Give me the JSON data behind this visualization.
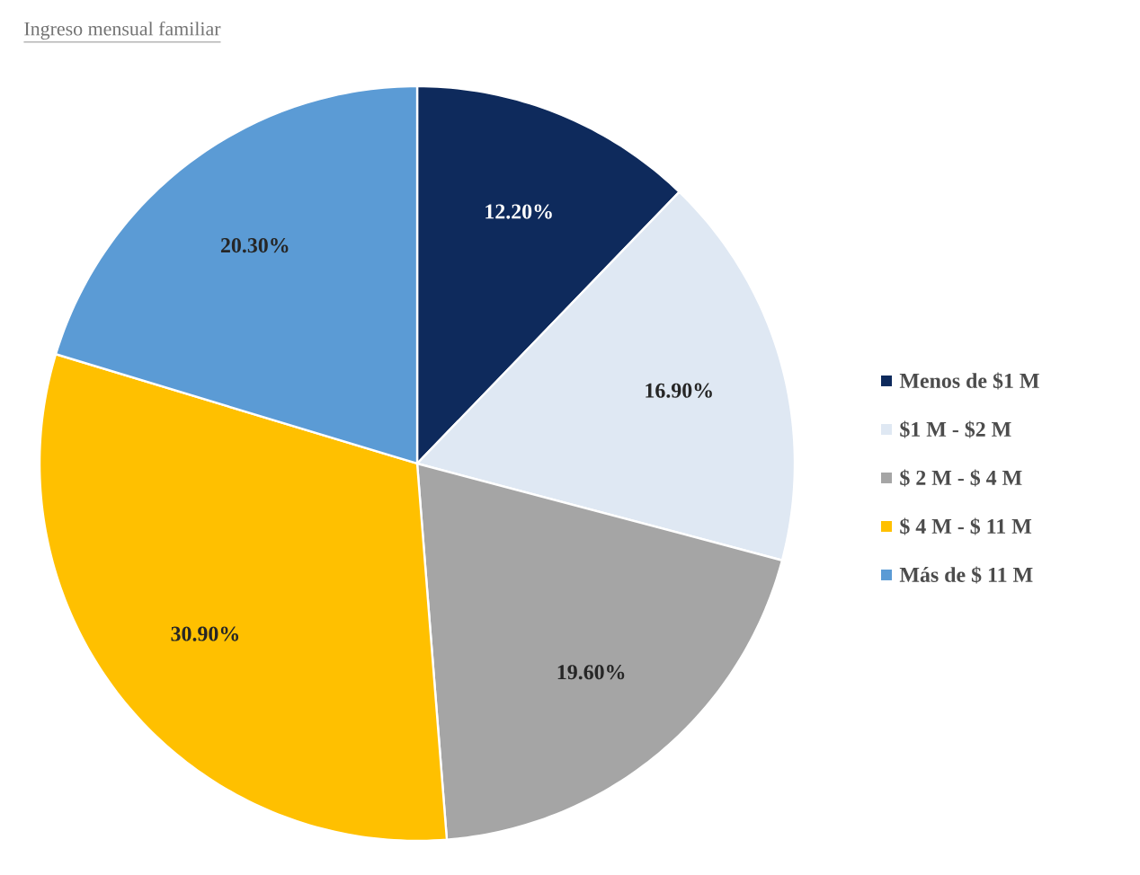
{
  "chart_data": {
    "type": "pie",
    "title": "Ingreso mensual familiar",
    "categories": [
      "Menos de $1 M",
      "$1 M - $2 M",
      "$ 2 M - $ 4 M",
      "$ 4 M - $ 11 M",
      "Más de $ 11 M"
    ],
    "values": [
      12.2,
      16.9,
      19.6,
      30.9,
      20.3
    ],
    "value_labels": [
      "12.20%",
      "16.90%",
      "19.60%",
      "30.90%",
      "20.30%"
    ],
    "colors": [
      "#0e2a5c",
      "#dfe8f3",
      "#a5a5a5",
      "#ffc000",
      "#5b9bd5"
    ],
    "legend": "right"
  }
}
